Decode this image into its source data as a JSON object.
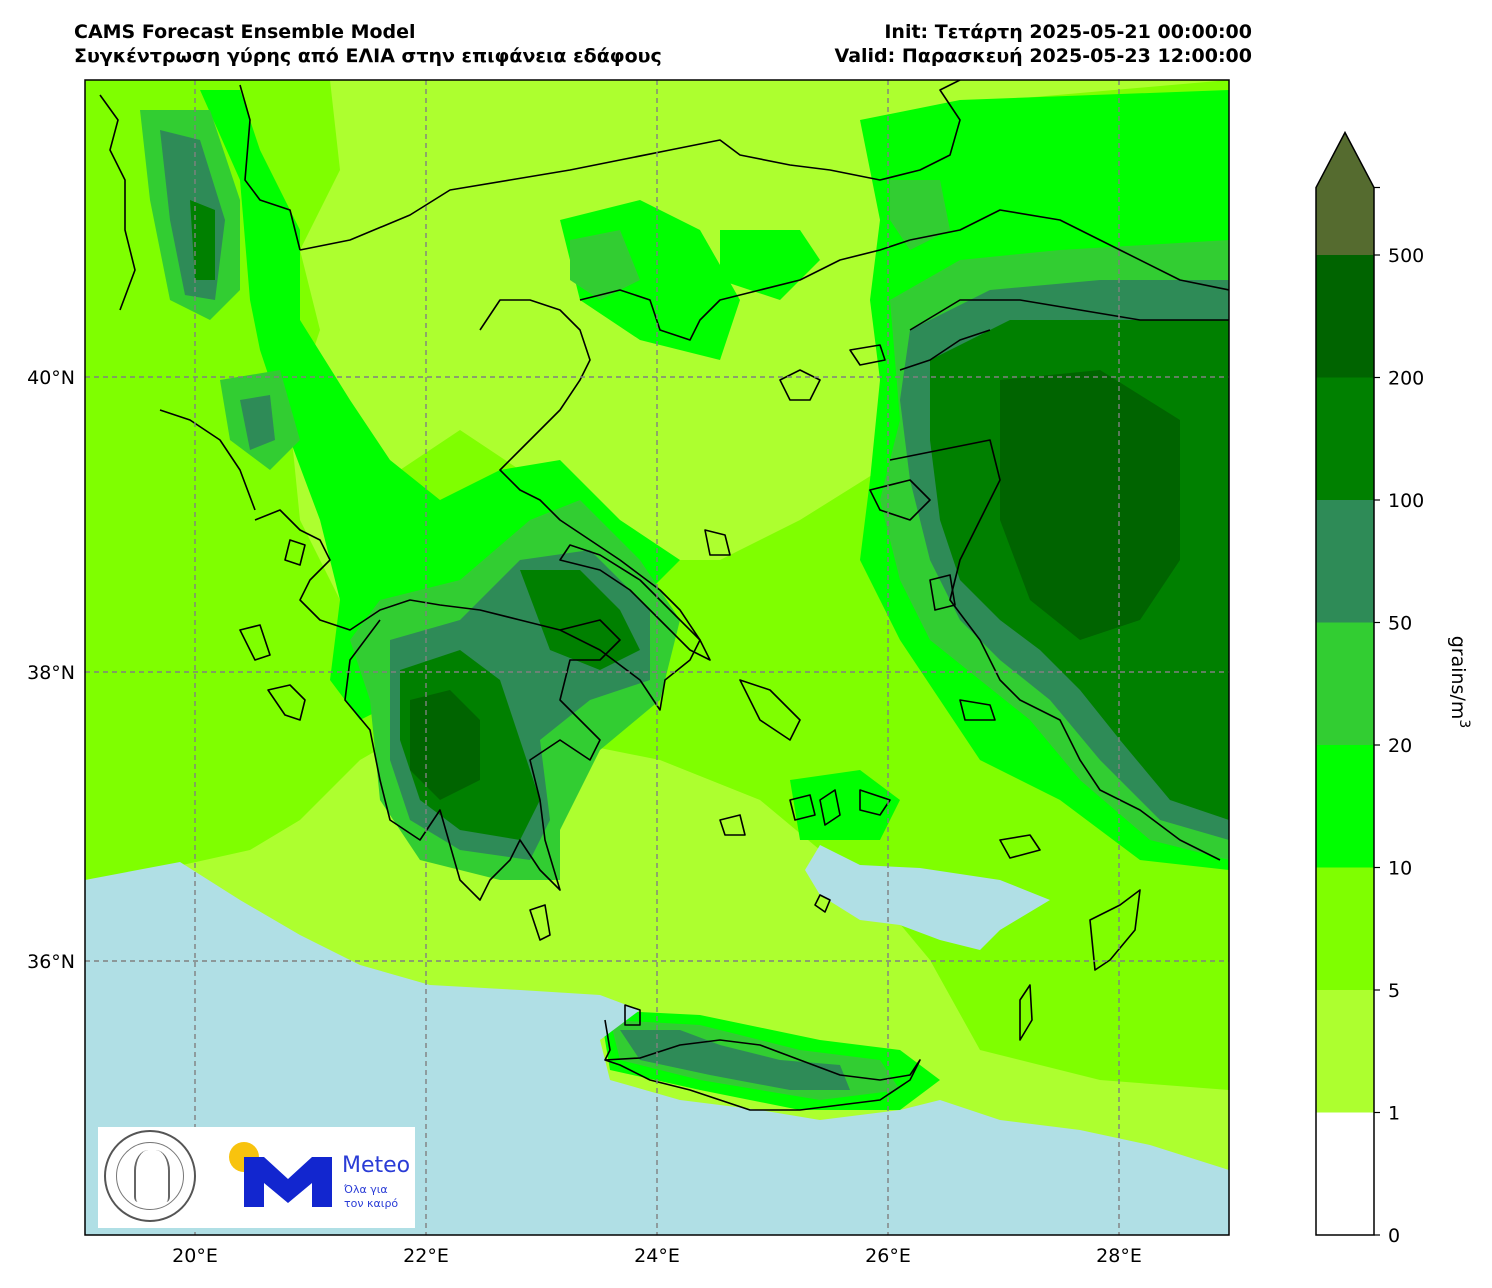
{
  "header": {
    "title_left_line1": "CAMS Forecast Ensemble Model",
    "title_left_line2": "Συγκέντρωση γύρης από ΕΛΙΑ στην επιφάνεια εδάφους",
    "title_right_line1": "Init: Τετάρτη 2025-05-21 00:00:00",
    "title_right_line2": "Valid: Παρασκευή 2025-05-23 12:00:00"
  },
  "map": {
    "lon_ticks": [
      {
        "lon": 20,
        "label": "20°E"
      },
      {
        "lon": 22,
        "label": "22°E"
      },
      {
        "lon": 24,
        "label": "24°E"
      },
      {
        "lon": 26,
        "label": "26°E"
      },
      {
        "lon": 28,
        "label": "28°E"
      }
    ],
    "lat_ticks": [
      {
        "lat": 40,
        "label": "40°N"
      },
      {
        "lat": 38,
        "label": "38°N"
      },
      {
        "lat": 36,
        "label": "36°N"
      }
    ],
    "grid": true,
    "sea_color": "#b0dfe5"
  },
  "colorbar": {
    "label": "grains/m",
    "label_sup": "3",
    "ticks": [
      "0",
      "1",
      "5",
      "10",
      "20",
      "50",
      "100",
      "200",
      "500"
    ],
    "levels": [
      {
        "from": 0,
        "to": 1,
        "color": "#ffffff"
      },
      {
        "from": 1,
        "to": 5,
        "color": "#adff2f"
      },
      {
        "from": 5,
        "to": 10,
        "color": "#7fff00"
      },
      {
        "from": 10,
        "to": 20,
        "color": "#00ff00"
      },
      {
        "from": 20,
        "to": 50,
        "color": "#32cd32"
      },
      {
        "from": 50,
        "to": 100,
        "color": "#2e8b57"
      },
      {
        "from": 100,
        "to": 200,
        "color": "#008000"
      },
      {
        "from": 200,
        "to": 500,
        "color": "#006400"
      },
      {
        "from": 500,
        "to": "max",
        "color": "#556b2f"
      }
    ],
    "extend": "max"
  },
  "logos": {
    "meteo_name": "Meteo",
    "meteo_tagline_1": "Όλα για",
    "meteo_tagline_2": "τον καιρό",
    "observatory": "ΕΘΝΙΚΟΝ ΑΣΤΕΡΟΣΚΟΠΕΙΟΝ ΑΘΗΝΩΝ · NATIONAL OBSERVATORY OF ATHENS"
  }
}
